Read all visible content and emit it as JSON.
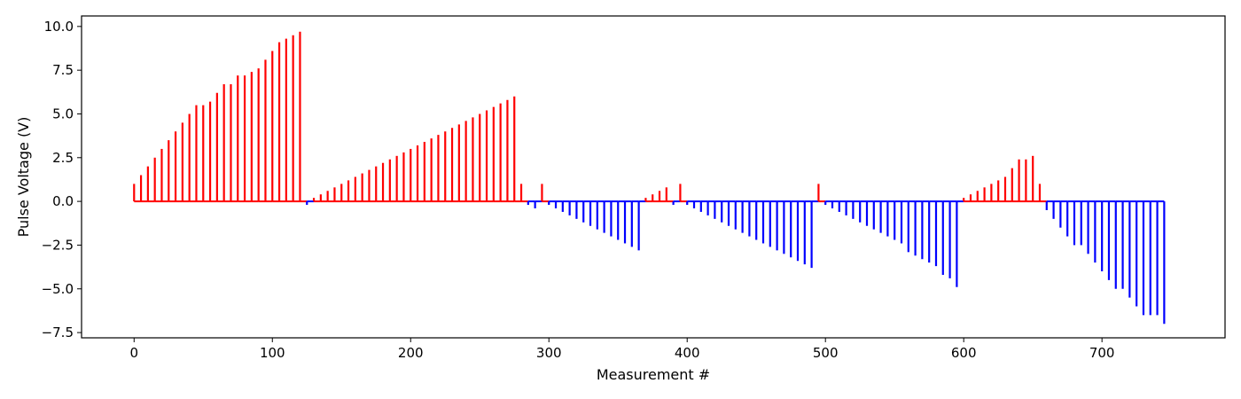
{
  "chart_data": {
    "type": "bar",
    "title": "",
    "xlabel": "Measurement #",
    "ylabel": "Pulse Voltage (V)",
    "xlim": [
      -38,
      789
    ],
    "ylim": [
      -7.8,
      10.6
    ],
    "xticks": [
      0,
      100,
      200,
      300,
      400,
      500,
      600,
      700
    ],
    "yticks": [
      -7.5,
      -5.0,
      -2.5,
      0.0,
      2.5,
      5.0,
      7.5,
      10.0
    ],
    "ytick_labels": [
      "−7.5",
      "−5.0",
      "−2.5",
      "0.0",
      "2.5",
      "5.0",
      "7.5",
      "10.0"
    ],
    "grid": false,
    "colors": {
      "positive": "#ff0000",
      "negative": "#0000ff",
      "axes": "#000000"
    },
    "x": [
      0,
      5,
      10,
      15,
      20,
      25,
      30,
      35,
      40,
      45,
      50,
      55,
      60,
      65,
      70,
      75,
      80,
      85,
      90,
      95,
      100,
      105,
      110,
      115,
      120,
      125,
      130,
      135,
      140,
      145,
      150,
      155,
      160,
      165,
      170,
      175,
      180,
      185,
      190,
      195,
      200,
      205,
      210,
      215,
      220,
      225,
      230,
      235,
      240,
      245,
      250,
      255,
      260,
      265,
      270,
      275,
      280,
      285,
      290,
      295,
      300,
      305,
      310,
      315,
      320,
      325,
      330,
      335,
      340,
      345,
      350,
      355,
      360,
      365,
      370,
      375,
      380,
      385,
      390,
      395,
      400,
      405,
      410,
      415,
      420,
      425,
      430,
      435,
      440,
      445,
      450,
      455,
      460,
      465,
      470,
      475,
      480,
      485,
      490,
      495,
      500,
      505,
      510,
      515,
      520,
      525,
      530,
      535,
      540,
      545,
      550,
      555,
      560,
      565,
      570,
      575,
      580,
      585,
      590,
      595,
      600,
      605,
      610,
      615,
      620,
      625,
      630,
      635,
      640,
      645,
      650,
      655,
      660,
      665,
      670,
      675,
      680,
      685,
      690,
      695,
      700,
      705,
      710,
      715,
      720,
      725,
      730,
      735,
      740,
      745
    ],
    "values": [
      1.0,
      1.5,
      2.0,
      2.5,
      3.0,
      3.5,
      4.0,
      4.5,
      5.0,
      5.5,
      5.5,
      5.7,
      6.2,
      6.7,
      6.7,
      7.2,
      7.2,
      7.4,
      7.6,
      8.1,
      8.6,
      9.1,
      9.3,
      9.5,
      9.7,
      -0.2,
      0.2,
      0.4,
      0.6,
      0.8,
      1.0,
      1.2,
      1.4,
      1.6,
      1.8,
      2.0,
      2.2,
      2.4,
      2.6,
      2.8,
      3.0,
      3.2,
      3.4,
      3.6,
      3.8,
      4.0,
      4.2,
      4.4,
      4.6,
      4.8,
      5.0,
      5.2,
      5.4,
      5.6,
      5.8,
      6.0,
      1.0,
      -0.2,
      -0.4,
      1.0,
      -0.2,
      -0.4,
      -0.6,
      -0.8,
      -1.0,
      -1.2,
      -1.4,
      -1.6,
      -1.8,
      -2.0,
      -2.2,
      -2.4,
      -2.6,
      -2.8,
      0.2,
      0.4,
      0.6,
      0.8,
      -0.2,
      1.0,
      -0.2,
      -0.4,
      -0.6,
      -0.8,
      -1.0,
      -1.2,
      -1.4,
      -1.6,
      -1.8,
      -2.0,
      -2.2,
      -2.4,
      -2.6,
      -2.8,
      -3.0,
      -3.2,
      -3.4,
      -3.6,
      -3.8,
      1.0,
      -0.2,
      -0.4,
      -0.6,
      -0.8,
      -1.0,
      -1.2,
      -1.4,
      -1.6,
      -1.8,
      -2.0,
      -2.2,
      -2.4,
      -2.9,
      -3.1,
      -3.3,
      -3.5,
      -3.7,
      -4.2,
      -4.4,
      -4.9,
      0.2,
      0.4,
      0.6,
      0.8,
      1.0,
      1.2,
      1.4,
      1.9,
      2.4,
      2.4,
      2.6,
      1.0,
      -0.5,
      -1.0,
      -1.5,
      -2.0,
      -2.5,
      -2.5,
      -3.0,
      -3.5,
      -4.0,
      -4.5,
      -5.0,
      -5.0,
      -5.5,
      -6.0,
      -6.5,
      -6.5,
      -6.5,
      -7.0
    ]
  }
}
